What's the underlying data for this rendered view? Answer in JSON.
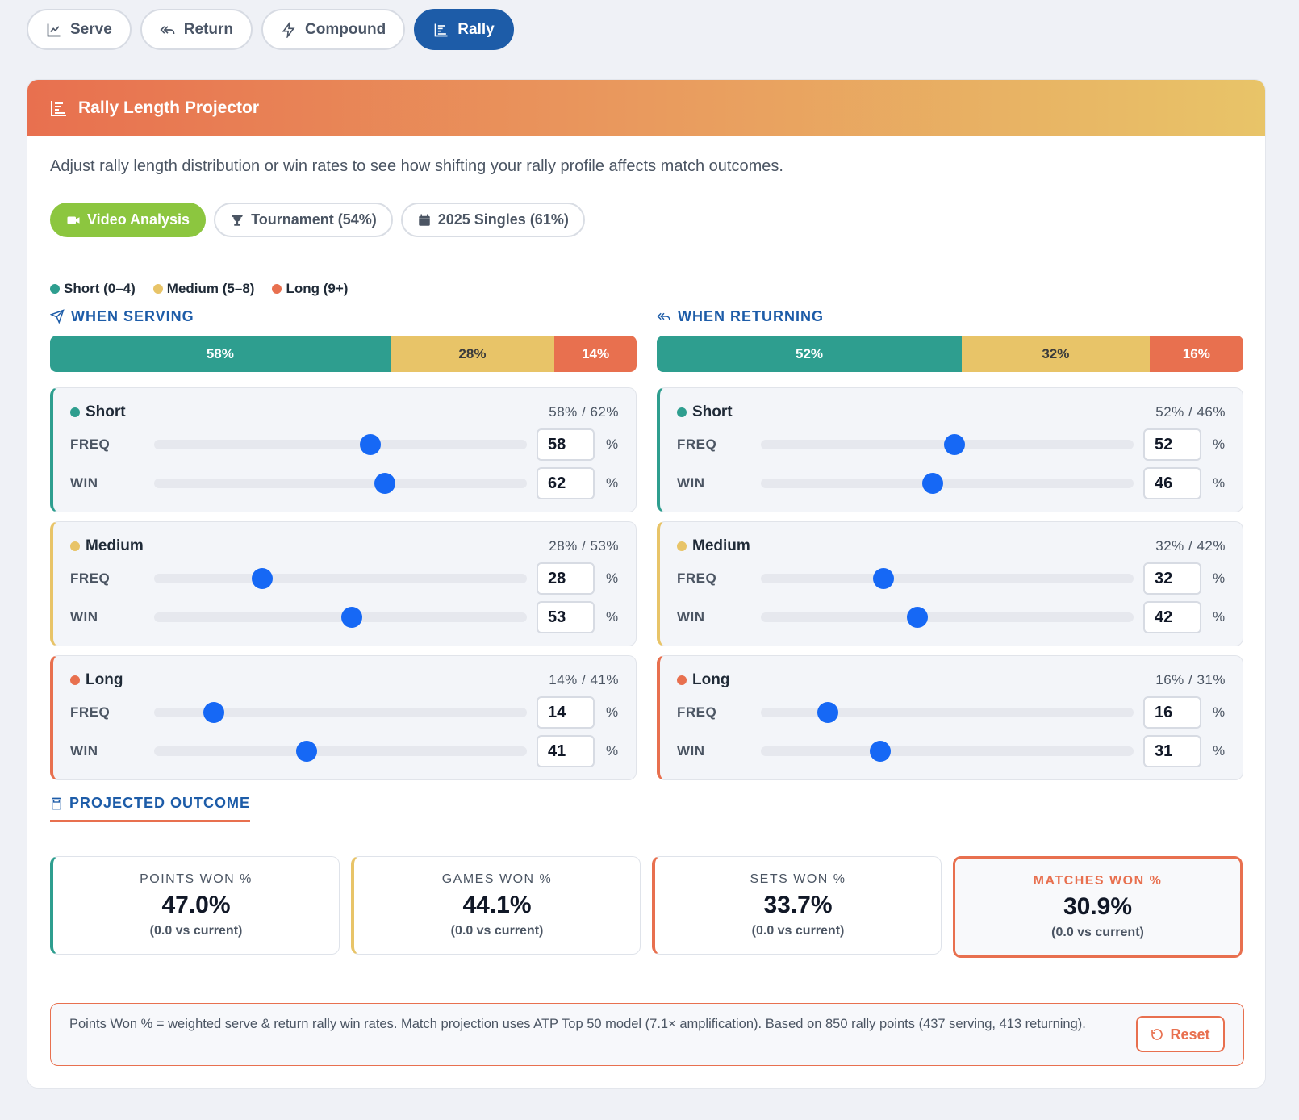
{
  "tabs": [
    {
      "label": "Serve",
      "icon": "line-chart-icon",
      "active": false
    },
    {
      "label": "Return",
      "icon": "reply-all-icon",
      "active": false
    },
    {
      "label": "Compound",
      "icon": "lightning-icon",
      "active": false
    },
    {
      "label": "Rally",
      "icon": "bars-icon",
      "active": true
    }
  ],
  "header": {
    "title": "Rally Length Projector",
    "icon": "bars-icon"
  },
  "description": "Adjust rally length distribution or win rates to see how shifting your rally profile affects match outcomes.",
  "filters": [
    {
      "label": "Video Analysis",
      "icon": "video-icon",
      "active": true
    },
    {
      "label": "Tournament (54%)",
      "icon": "trophy-icon",
      "active": false
    },
    {
      "label": "2025 Singles (61%)",
      "icon": "calendar-icon",
      "active": false
    }
  ],
  "legend": [
    {
      "label": "Short (0–4)",
      "color": "#2e9e8f"
    },
    {
      "label": "Medium (5–8)",
      "color": "#e8c468"
    },
    {
      "label": "Long (9+)",
      "color": "#e8704f"
    }
  ],
  "serving": {
    "title": "WHEN SERVING",
    "distribution": {
      "short": "58%",
      "medium": "28%",
      "long": "14%"
    },
    "buckets": [
      {
        "name": "Short",
        "summary": "58% / 62%",
        "freq_label": "FREQ",
        "win_label": "WIN",
        "freq": "58",
        "win": "62",
        "unit": "%"
      },
      {
        "name": "Medium",
        "summary": "28% / 53%",
        "freq_label": "FREQ",
        "win_label": "WIN",
        "freq": "28",
        "win": "53",
        "unit": "%"
      },
      {
        "name": "Long",
        "summary": "14% / 41%",
        "freq_label": "FREQ",
        "win_label": "WIN",
        "freq": "14",
        "win": "41",
        "unit": "%"
      }
    ]
  },
  "returning": {
    "title": "WHEN RETURNING",
    "distribution": {
      "short": "52%",
      "medium": "32%",
      "long": "16%"
    },
    "buckets": [
      {
        "name": "Short",
        "summary": "52% / 46%",
        "freq_label": "FREQ",
        "win_label": "WIN",
        "freq": "52",
        "win": "46",
        "unit": "%"
      },
      {
        "name": "Medium",
        "summary": "32% / 42%",
        "freq_label": "FREQ",
        "win_label": "WIN",
        "freq": "32",
        "win": "42",
        "unit": "%"
      },
      {
        "name": "Long",
        "summary": "16% / 31%",
        "freq_label": "FREQ",
        "win_label": "WIN",
        "freq": "16",
        "win": "31",
        "unit": "%"
      }
    ]
  },
  "outcome": {
    "title": "PROJECTED OUTCOME",
    "stats": [
      {
        "label": "POINTS WON %",
        "value": "47.0%",
        "delta": "(0.0 vs current)"
      },
      {
        "label": "GAMES WON %",
        "value": "44.1%",
        "delta": "(0.0 vs current)"
      },
      {
        "label": "SETS WON %",
        "value": "33.7%",
        "delta": "(0.0 vs current)"
      },
      {
        "label": "MATCHES WON %",
        "value": "30.9%",
        "delta": "(0.0 vs current)"
      }
    ]
  },
  "note": {
    "text": "Points Won % = weighted serve & return rally win rates. Match projection uses ATP Top 50 model (7.1× amplification). Based on 850 rally points (437 serving, 413 returning).",
    "reset_label": "Reset"
  },
  "colors": {
    "short": "#2e9e8f",
    "medium": "#e8c468",
    "long": "#e8704f",
    "accent": "#1d5ca8",
    "slider_thumb": "#1668f5",
    "filter_active": "#8cc63f"
  }
}
